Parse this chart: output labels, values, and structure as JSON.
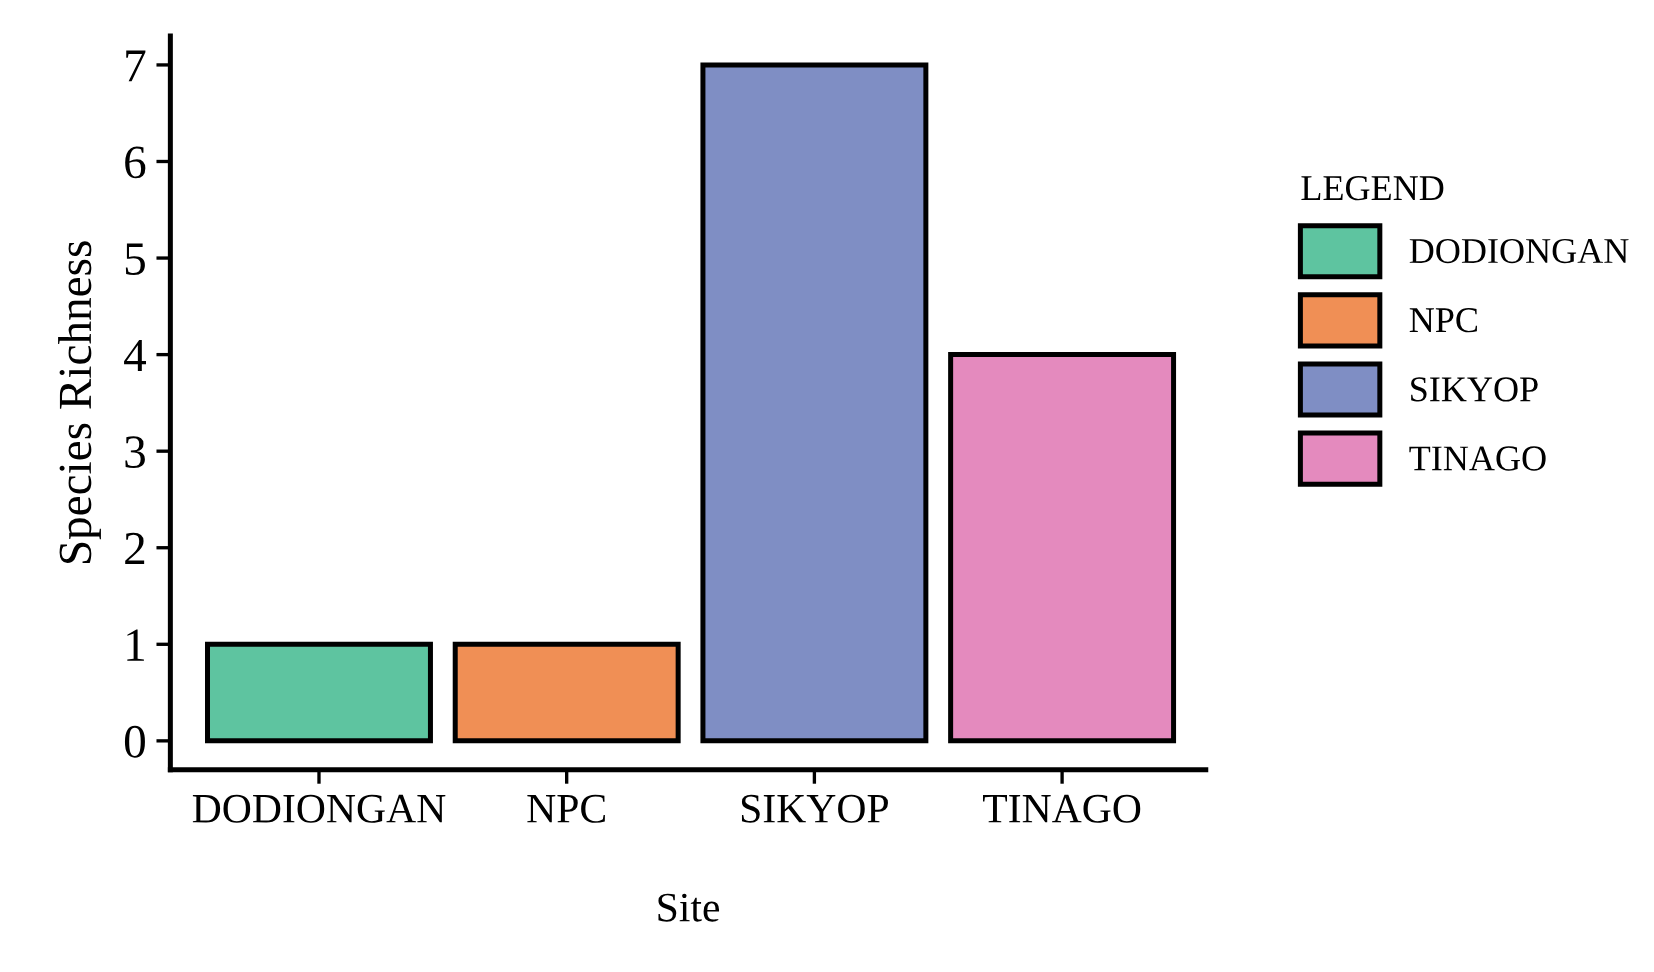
{
  "chart_data": {
    "type": "bar",
    "xlabel": "Site",
    "ylabel": "Species Richness",
    "legend_title": "LEGEND",
    "categories": [
      "DODIONGAN",
      "NPC",
      "SIKYOP",
      "TINAGO"
    ],
    "series": [
      {
        "name": "DODIONGAN",
        "color": "#5ec4a0",
        "values": [
          1,
          null,
          null,
          null
        ]
      },
      {
        "name": "NPC",
        "color": "#f08f55",
        "values": [
          null,
          1,
          null,
          null
        ]
      },
      {
        "name": "SIKYOP",
        "color": "#7f8ec4",
        "values": [
          null,
          null,
          7,
          null
        ]
      },
      {
        "name": "TINAGO",
        "color": "#e48abe",
        "values": [
          null,
          null,
          null,
          4
        ]
      }
    ],
    "ylim": [
      -0.3,
      7.3
    ],
    "yticks": [
      0,
      1,
      2,
      3,
      4,
      5,
      6,
      7
    ],
    "grid": false,
    "legend": "right"
  }
}
